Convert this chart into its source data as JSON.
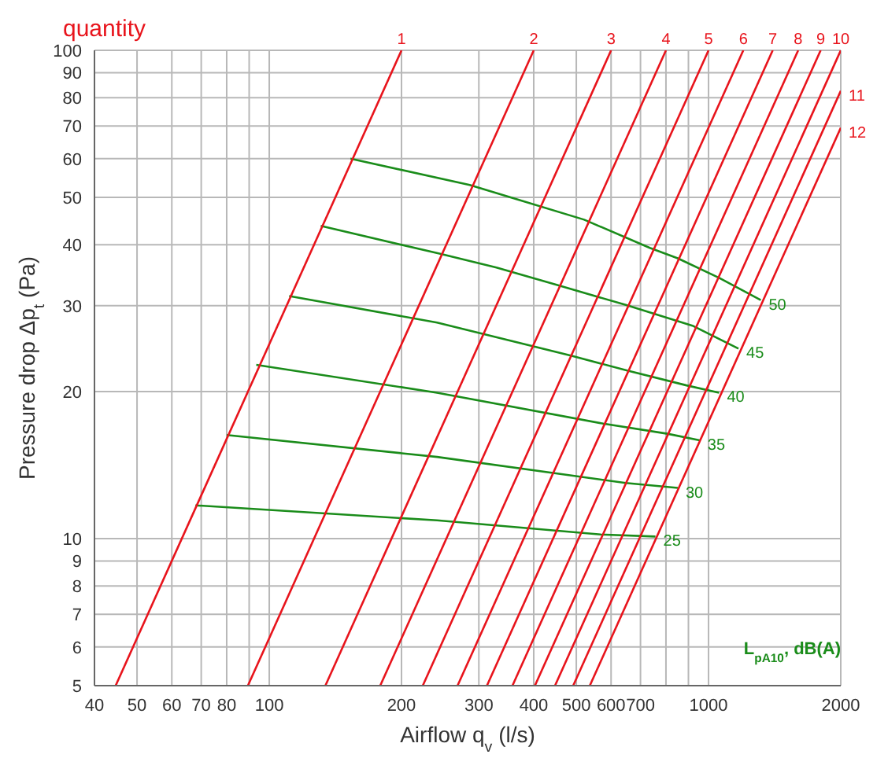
{
  "chart_data": {
    "type": "line",
    "title": "quantity",
    "xlabel": "Airflow q$_{v}$ (l/s)",
    "ylabel": "Pressure drop Δp$_{t}$ (Pa)",
    "annotations": [
      "L$_{pA10}$, dB(A)"
    ],
    "log": "xy",
    "grid": true,
    "legend": false,
    "marker": "none",
    "line_style": "solid",
    "xlim": [
      40,
      2000
    ],
    "ylim": [
      5,
      100
    ],
    "xticks": [
      40,
      50,
      60,
      70,
      80,
      {
        "value": 90,
        "label": null
      },
      100,
      200,
      300,
      400,
      500,
      600,
      700,
      {
        "value": 800,
        "label": null
      },
      {
        "value": 900,
        "label": null
      },
      1000,
      2000
    ],
    "yticks": [
      5,
      6,
      7,
      8,
      9,
      10,
      20,
      30,
      40,
      50,
      60,
      70,
      80,
      90,
      100
    ],
    "series": [
      {
        "name": "1",
        "color": "#e8141c",
        "x": [
          44.7,
          200
        ],
        "values": [
          5,
          100
        ]
      },
      {
        "name": "2",
        "color": "#e8141c",
        "x": [
          89.4,
          400
        ],
        "values": [
          5,
          100
        ]
      },
      {
        "name": "3",
        "color": "#e8141c",
        "x": [
          134.2,
          600
        ],
        "values": [
          5,
          100
        ]
      },
      {
        "name": "4",
        "color": "#e8141c",
        "x": [
          178.9,
          800
        ],
        "values": [
          5,
          100
        ]
      },
      {
        "name": "5",
        "color": "#e8141c",
        "x": [
          223.6,
          1000
        ],
        "values": [
          5,
          100
        ]
      },
      {
        "name": "6",
        "color": "#e8141c",
        "x": [
          268.3,
          1200
        ],
        "values": [
          5,
          100
        ]
      },
      {
        "name": "7",
        "color": "#e8141c",
        "x": [
          313.0,
          1400
        ],
        "values": [
          5,
          100
        ]
      },
      {
        "name": "8",
        "color": "#e8141c",
        "x": [
          357.8,
          1600
        ],
        "values": [
          5,
          100
        ]
      },
      {
        "name": "9",
        "color": "#e8141c",
        "x": [
          402.5,
          1800
        ],
        "values": [
          5,
          100
        ]
      },
      {
        "name": "10",
        "color": "#e8141c",
        "x": [
          447.2,
          2000
        ],
        "values": [
          5,
          100
        ]
      },
      {
        "name": "11",
        "color": "#e8141c",
        "x": [
          491.9,
          2000
        ],
        "values": [
          5,
          82.6
        ]
      },
      {
        "name": "12",
        "color": "#e8141c",
        "x": [
          536.7,
          2000
        ],
        "values": [
          5,
          69.4
        ]
      },
      {
        "name": "50",
        "color": "#1a8c1a",
        "x": [
          153,
          286,
          521,
          735,
          851,
          1057,
          1315
        ],
        "values": [
          60,
          53,
          45,
          39.4,
          37.5,
          34.2,
          30.8
        ]
      },
      {
        "name": "45",
        "color": "#1a8c1a",
        "x": [
          131,
          245,
          329,
          456,
          648,
          919,
          1170
        ],
        "values": [
          43.7,
          38.3,
          35.9,
          33,
          30.1,
          27.3,
          24.5
        ]
      },
      {
        "name": "40",
        "color": "#1a8c1a",
        "x": [
          111,
          241,
          486,
          653,
          891,
          1057
        ],
        "values": [
          31.4,
          27.7,
          23.7,
          22.1,
          20.6,
          19.9
        ]
      },
      {
        "name": "35",
        "color": "#1a8c1a",
        "x": [
          93.4,
          241,
          576,
          806,
          955
        ],
        "values": [
          22.7,
          19.9,
          17.2,
          16.4,
          15.9
        ]
      },
      {
        "name": "30",
        "color": "#1a8c1a",
        "x": [
          80,
          241,
          648,
          851
        ],
        "values": [
          16.3,
          14.7,
          13,
          12.7
        ]
      },
      {
        "name": "25",
        "color": "#1a8c1a",
        "x": [
          67.9,
          241,
          568,
          757
        ],
        "values": [
          11.7,
          10.9,
          10.2,
          10.1
        ]
      }
    ]
  }
}
